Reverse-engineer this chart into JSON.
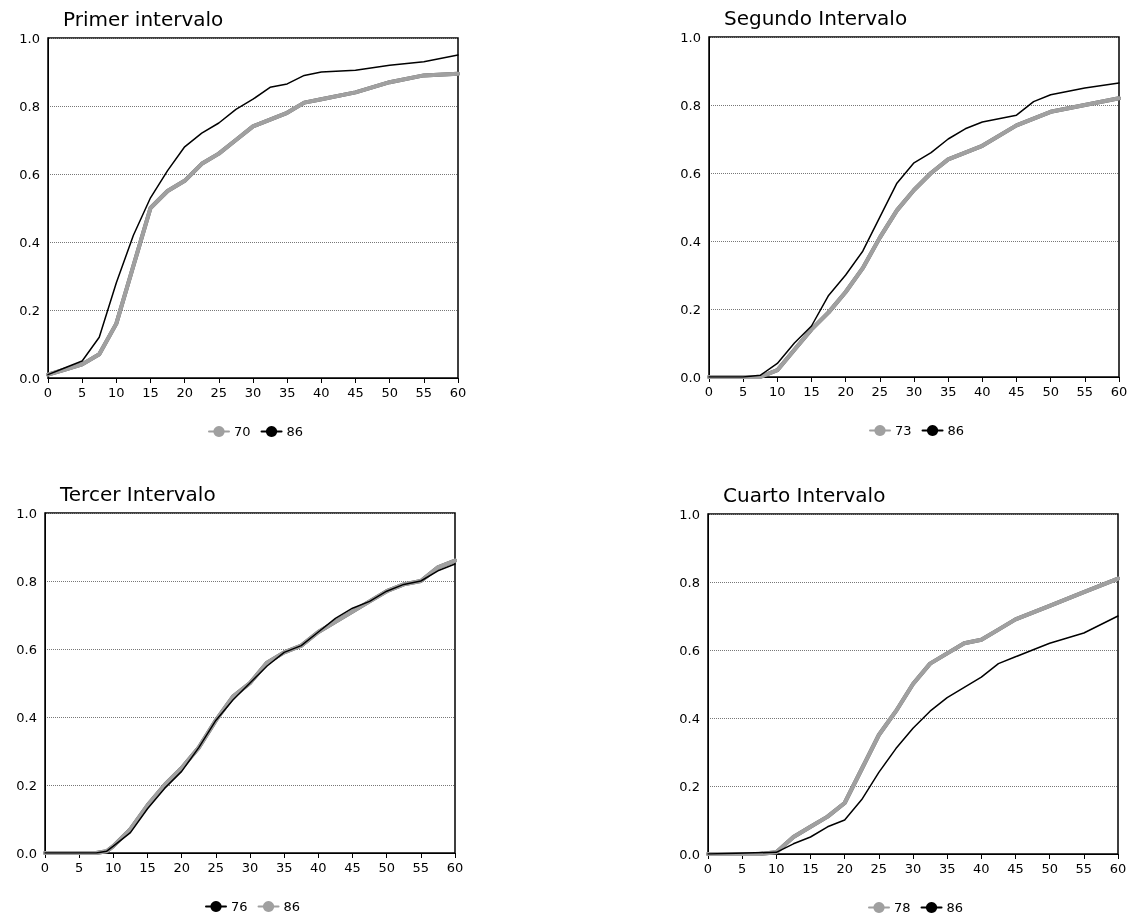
{
  "chart_data": [
    {
      "type": "line",
      "title": "Primer intervalo",
      "xlim": [
        0,
        60
      ],
      "xticks": [
        0,
        5,
        10,
        15,
        20,
        25,
        30,
        35,
        40,
        45,
        50,
        55,
        60
      ],
      "ylim": [
        0,
        1
      ],
      "yticks": [
        {
          "value": 0,
          "label": "0.0"
        },
        {
          "value": 0.2,
          "label": "0.2"
        },
        {
          "value": 0.4,
          "label": "0.4"
        },
        {
          "value": 0.6,
          "label": "0.6"
        },
        {
          "value": 0.8,
          "label": "0.8"
        },
        {
          "value": 1,
          "label": "1.0"
        }
      ],
      "grid": "y",
      "legend": "bottom",
      "marker": "none",
      "line_style": "solid",
      "series": [
        {
          "name": "70",
          "color": "#a0a0a0",
          "x": [
            0,
            2.5,
            5,
            7.5,
            10,
            12.5,
            15,
            17.5,
            20,
            22.5,
            25,
            27.5,
            30,
            32.5,
            35,
            37.5,
            40,
            45,
            50,
            55,
            60
          ],
          "values": [
            0.01,
            0.025,
            0.04,
            0.07,
            0.16,
            0.33,
            0.5,
            0.55,
            0.58,
            0.63,
            0.66,
            0.7,
            0.74,
            0.76,
            0.78,
            0.81,
            0.82,
            0.84,
            0.87,
            0.89,
            0.895
          ]
        },
        {
          "name": "86",
          "color": "#000000",
          "x": [
            0,
            2.5,
            5,
            7.5,
            10,
            12.5,
            15,
            17.5,
            20,
            22.5,
            25,
            27.5,
            30,
            32.5,
            35,
            37.5,
            40,
            45,
            50,
            55,
            60
          ],
          "values": [
            0.01,
            0.03,
            0.05,
            0.12,
            0.28,
            0.42,
            0.53,
            0.61,
            0.68,
            0.72,
            0.75,
            0.79,
            0.82,
            0.855,
            0.865,
            0.89,
            0.9,
            0.905,
            0.92,
            0.93,
            0.95
          ]
        }
      ]
    },
    {
      "type": "line",
      "title": "Segundo Intervalo",
      "xlim": [
        0,
        60
      ],
      "xticks": [
        0,
        5,
        10,
        15,
        20,
        25,
        30,
        35,
        40,
        45,
        50,
        55,
        60
      ],
      "ylim": [
        0,
        1
      ],
      "yticks": [
        {
          "value": 0,
          "label": "0.0"
        },
        {
          "value": 0.2,
          "label": "0.2"
        },
        {
          "value": 0.4,
          "label": "0.4"
        },
        {
          "value": 0.6,
          "label": "0.6"
        },
        {
          "value": 0.8,
          "label": "0.8"
        },
        {
          "value": 1,
          "label": "1.0"
        }
      ],
      "grid": "y",
      "legend": "bottom",
      "marker": "none",
      "line_style": "solid",
      "series": [
        {
          "name": "73",
          "color": "#a0a0a0",
          "x": [
            0,
            5,
            7.5,
            10,
            12.5,
            15,
            17.5,
            20,
            22.5,
            25,
            27.5,
            30,
            32.5,
            35,
            37.5,
            40,
            45,
            50,
            55,
            60
          ],
          "values": [
            0,
            0,
            0,
            0.02,
            0.08,
            0.14,
            0.19,
            0.25,
            0.32,
            0.41,
            0.49,
            0.55,
            0.6,
            0.64,
            0.66,
            0.68,
            0.74,
            0.78,
            0.8,
            0.82
          ]
        },
        {
          "name": "86",
          "color": "#000000",
          "x": [
            0,
            5,
            7.5,
            10,
            12.5,
            15,
            17.5,
            20,
            22.5,
            25,
            27.5,
            30,
            32.5,
            35,
            37.5,
            40,
            45,
            47.5,
            50,
            55,
            60
          ],
          "values": [
            0,
            0,
            0.005,
            0.04,
            0.1,
            0.15,
            0.24,
            0.3,
            0.37,
            0.47,
            0.57,
            0.63,
            0.66,
            0.7,
            0.73,
            0.75,
            0.77,
            0.81,
            0.83,
            0.85,
            0.865
          ]
        }
      ]
    },
    {
      "type": "line",
      "title": "Tercer Intervalo",
      "xlim": [
        0,
        60
      ],
      "xticks": [
        0,
        5,
        10,
        15,
        20,
        25,
        30,
        35,
        40,
        45,
        50,
        55,
        60
      ],
      "ylim": [
        0,
        1
      ],
      "yticks": [
        {
          "value": 0,
          "label": "0.0"
        },
        {
          "value": 0.2,
          "label": "0.2"
        },
        {
          "value": 0.4,
          "label": "0.4"
        },
        {
          "value": 0.6,
          "label": "0.6"
        },
        {
          "value": 0.8,
          "label": "0.8"
        },
        {
          "value": 1,
          "label": "1.0"
        }
      ],
      "grid": "y",
      "legend": "bottom",
      "marker": "none",
      "line_style": "solid",
      "series": [
        {
          "name": "76",
          "color": "#000000",
          "x": [
            0,
            7.5,
            9,
            10,
            12.5,
            15,
            17.5,
            20,
            22.5,
            25,
            27.5,
            30,
            32.5,
            35,
            37.5,
            40,
            42.5,
            45,
            47.5,
            50,
            52.5,
            55,
            57.5,
            60
          ],
          "values": [
            0,
            0,
            0.005,
            0.02,
            0.06,
            0.13,
            0.19,
            0.24,
            0.31,
            0.39,
            0.45,
            0.5,
            0.55,
            0.59,
            0.61,
            0.65,
            0.69,
            0.72,
            0.74,
            0.77,
            0.79,
            0.8,
            0.83,
            0.85
          ]
        },
        {
          "name": "86",
          "color": "#a0a0a0",
          "x": [
            0,
            7.5,
            9,
            10,
            12.5,
            15,
            17.5,
            20,
            22.5,
            25,
            27.5,
            30,
            32.5,
            35,
            37.5,
            40,
            42.5,
            45,
            47.5,
            50,
            52.5,
            55,
            57.5,
            60
          ],
          "values": [
            0,
            0,
            0.005,
            0.02,
            0.07,
            0.14,
            0.2,
            0.25,
            0.31,
            0.39,
            0.46,
            0.5,
            0.56,
            0.59,
            0.61,
            0.65,
            0.68,
            0.71,
            0.74,
            0.77,
            0.79,
            0.8,
            0.84,
            0.86
          ]
        }
      ]
    },
    {
      "type": "line",
      "title": "Cuarto Intervalo",
      "xlim": [
        0,
        60
      ],
      "xticks": [
        0,
        5,
        10,
        15,
        20,
        25,
        30,
        35,
        40,
        45,
        50,
        55,
        60
      ],
      "ylim": [
        0,
        1
      ],
      "yticks": [
        {
          "value": 0,
          "label": "0.0"
        },
        {
          "value": 0.2,
          "label": "0.2"
        },
        {
          "value": 0.4,
          "label": "0.4"
        },
        {
          "value": 0.6,
          "label": "0.6"
        },
        {
          "value": 0.8,
          "label": "0.8"
        },
        {
          "value": 1,
          "label": "1.0"
        }
      ],
      "grid": "y",
      "legend": "bottom",
      "marker": "none",
      "line_style": "solid",
      "series": [
        {
          "name": "78",
          "color": "#a0a0a0",
          "x": [
            0,
            7.5,
            10,
            12.5,
            15,
            17.5,
            20,
            22.5,
            25,
            27.5,
            30,
            32.5,
            35,
            37.5,
            40,
            42.5,
            45,
            47.5,
            50,
            55,
            60
          ],
          "values": [
            0,
            0,
            0.005,
            0.05,
            0.08,
            0.11,
            0.15,
            0.25,
            0.35,
            0.42,
            0.5,
            0.56,
            0.59,
            0.62,
            0.63,
            0.66,
            0.69,
            0.71,
            0.73,
            0.77,
            0.81
          ]
        },
        {
          "name": "86",
          "color": "#000000",
          "x": [
            0,
            10,
            12.5,
            15,
            17.5,
            20,
            22.5,
            25,
            27.5,
            30,
            32.5,
            35,
            37.5,
            40,
            42.5,
            45,
            47.5,
            50,
            55,
            60
          ],
          "values": [
            0,
            0.005,
            0.03,
            0.05,
            0.08,
            0.1,
            0.16,
            0.24,
            0.31,
            0.37,
            0.42,
            0.46,
            0.49,
            0.52,
            0.56,
            0.58,
            0.6,
            0.62,
            0.65,
            0.7
          ]
        }
      ]
    }
  ]
}
